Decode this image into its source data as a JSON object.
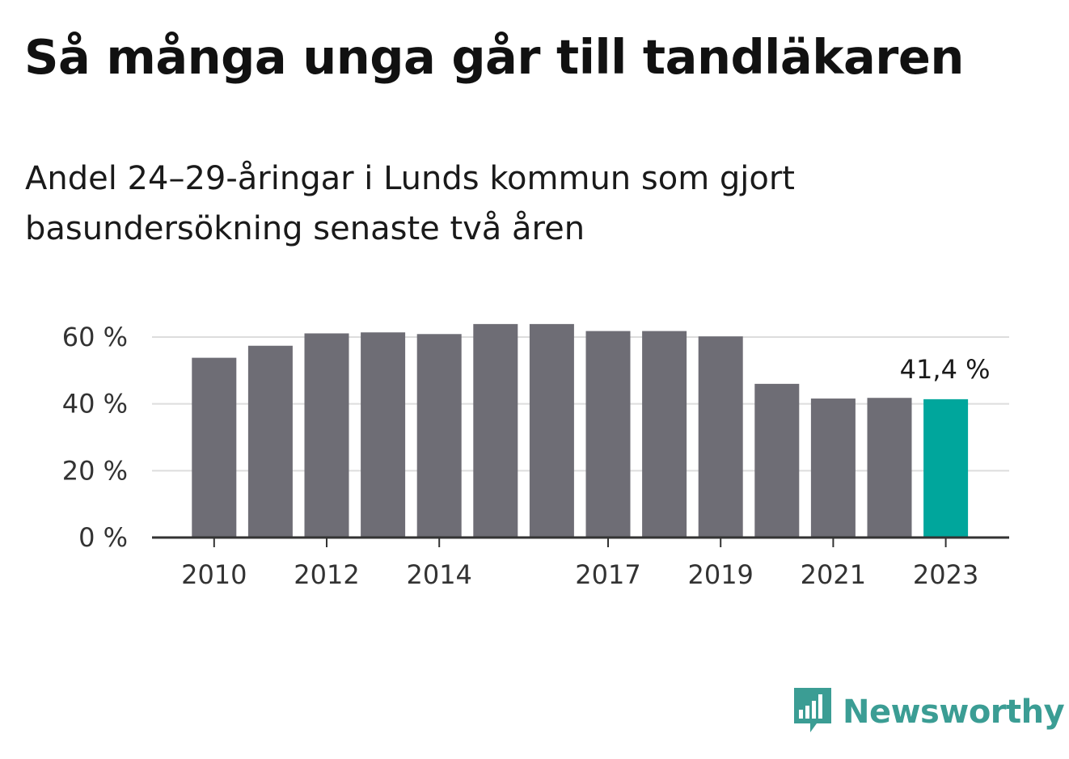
{
  "header": {
    "title": "Så många unga går till tandläkaren",
    "subtitle": "Andel 24–29-åringar i Lunds kommun som gjort basundersökning senaste två åren"
  },
  "chart_data": {
    "type": "bar",
    "categories": [
      "2010",
      "2011",
      "2012",
      "2013",
      "2014",
      "2015",
      "2016",
      "2017",
      "2018",
      "2019",
      "2020",
      "2021",
      "2022",
      "2023"
    ],
    "values": [
      53.8,
      57.4,
      61.1,
      61.4,
      60.9,
      63.9,
      63.9,
      61.8,
      61.8,
      60.2,
      46.0,
      41.6,
      41.8,
      41.4
    ],
    "x_tick_labels": [
      "2010",
      "2012",
      "2014",
      "2017",
      "2019",
      "2021",
      "2023"
    ],
    "y_ticks": [
      0,
      20,
      40,
      60
    ],
    "y_tick_labels": [
      "0 %",
      "20 %",
      "40 %",
      "60 %"
    ],
    "ylim": [
      0,
      65
    ],
    "highlight_index": 13,
    "highlight_label": "41,4 %",
    "grid": true,
    "colors": {
      "bar": "#6e6d75",
      "highlight": "#00a69c",
      "grid": "#dddddd",
      "axis": "#333333"
    }
  },
  "brand": {
    "name": "Newsworthy",
    "icon": "bar-chart-speech-bubble-icon",
    "color": "#3b9d94"
  }
}
